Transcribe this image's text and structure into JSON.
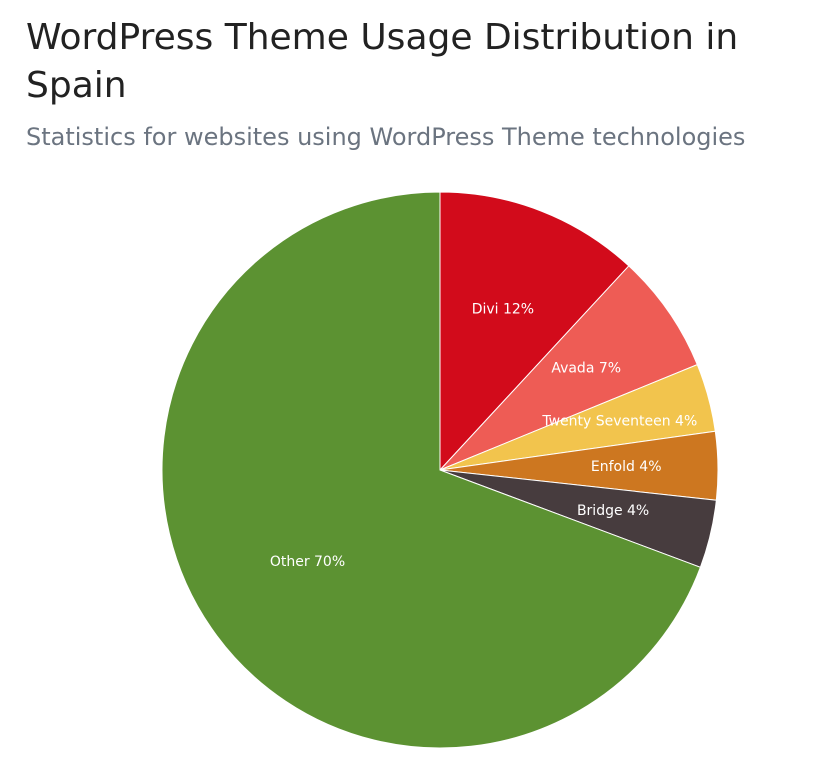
{
  "chart_data": {
    "type": "pie",
    "title": "WordPress Theme Usage Distribution in Spain",
    "subtitle": "Statistics for websites using WordPress Theme technologies",
    "slices": [
      {
        "label": "Divi",
        "value": 12,
        "display": "Divi 12%",
        "color": "#d20b1b"
      },
      {
        "label": "Avada",
        "value": 7,
        "display": "Avada 7%",
        "color": "#ee5c55"
      },
      {
        "label": "Twenty Seventeen",
        "value": 4,
        "display": "Twenty Seventeen 4%",
        "color": "#f2c44d"
      },
      {
        "label": "Enfold",
        "value": 4,
        "display": "Enfold 4%",
        "color": "#cd7720"
      },
      {
        "label": "Bridge",
        "value": 4,
        "display": "Bridge 4%",
        "color": "#473c3e"
      },
      {
        "label": "Other",
        "value": 70,
        "display": "Other 70%",
        "color": "#5c9232"
      }
    ]
  }
}
